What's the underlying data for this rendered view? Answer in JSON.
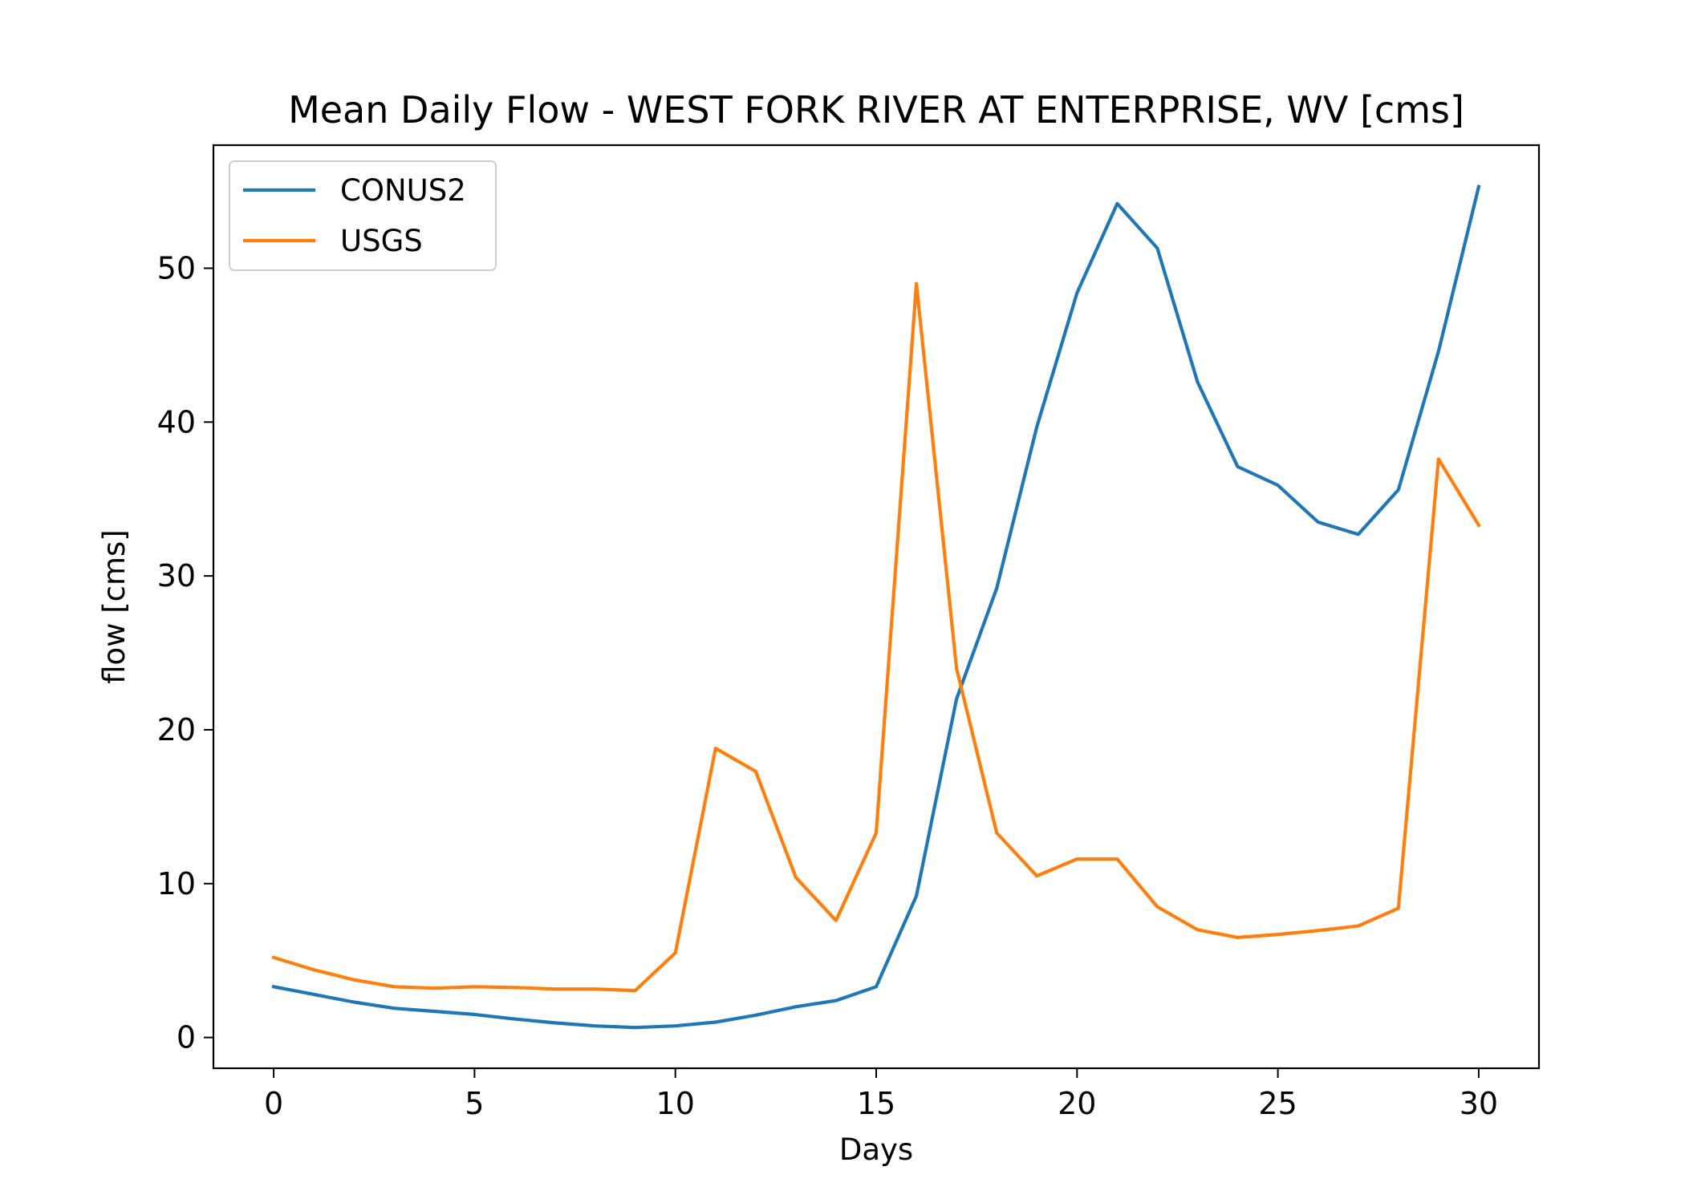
{
  "chart_data": {
    "type": "line",
    "title": "Mean Daily Flow - WEST FORK RIVER AT ENTERPRISE, WV [cms]",
    "xlabel": "Days",
    "ylabel": "flow [cms]",
    "xlim": [
      -1.5,
      31.5
    ],
    "ylim": [
      -2,
      58
    ],
    "xticks": [
      0,
      5,
      10,
      15,
      20,
      25,
      30
    ],
    "yticks": [
      0,
      10,
      20,
      30,
      40,
      50
    ],
    "grid": false,
    "legend_position": "top-left",
    "x": [
      0,
      1,
      2,
      3,
      4,
      5,
      6,
      7,
      8,
      9,
      10,
      11,
      12,
      13,
      14,
      15,
      16,
      17,
      18,
      19,
      20,
      21,
      22,
      23,
      24,
      25,
      26,
      27,
      28,
      29,
      30
    ],
    "series": [
      {
        "name": "CONUS2",
        "color": "#1f77b4",
        "values": [
          3.3,
          2.8,
          2.3,
          1.9,
          1.7,
          1.5,
          1.2,
          0.95,
          0.75,
          0.65,
          0.75,
          1.0,
          1.45,
          2.0,
          2.4,
          3.3,
          9.2,
          22.0,
          29.2,
          39.7,
          48.4,
          54.2,
          51.3,
          42.6,
          37.1,
          35.9,
          33.5,
          32.7,
          35.6,
          44.6,
          55.3
        ]
      },
      {
        "name": "USGS",
        "color": "#ff7f0e",
        "values": [
          5.2,
          4.4,
          3.75,
          3.3,
          3.2,
          3.3,
          3.25,
          3.15,
          3.15,
          3.05,
          5.5,
          18.8,
          17.3,
          10.4,
          7.6,
          13.3,
          49.0,
          24.0,
          13.3,
          10.5,
          11.6,
          11.6,
          8.5,
          7.0,
          6.5,
          6.7,
          6.95,
          7.25,
          8.4,
          37.6,
          33.3
        ]
      }
    ]
  }
}
